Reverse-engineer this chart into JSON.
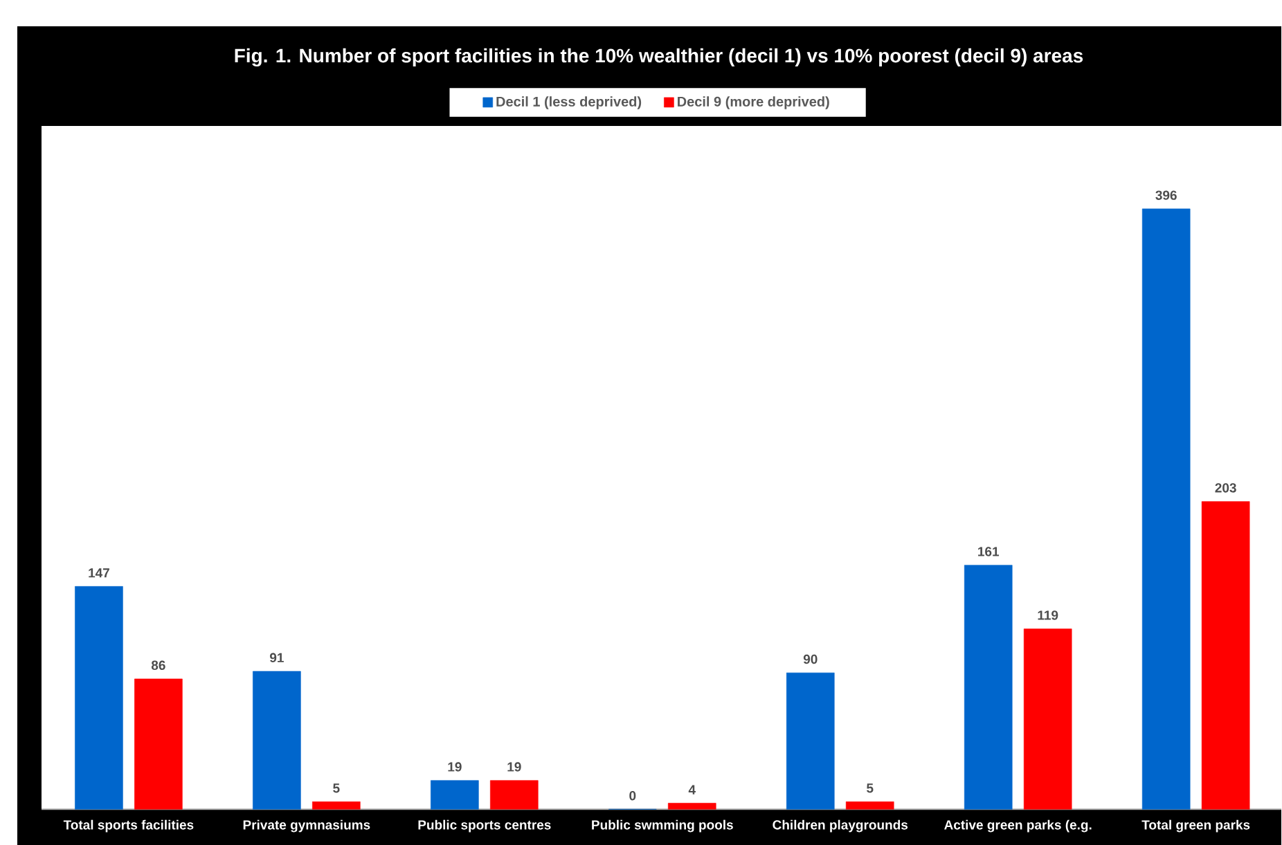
{
  "chart_data": {
    "type": "bar",
    "title": "Fig. 1. Number of sport facilities in the 10% wealthier (decil 1) vs 10% poorest (decil 9) areas",
    "categories": [
      "Total sports facilities",
      "Private gymnasiums",
      "Public sports centres",
      "Public swmming pools",
      "Children playgrounds",
      "Active green parks (e.g.",
      "Total green parks"
    ],
    "series": [
      {
        "name": "Decil 1 (less deprived)",
        "color": "#0066cc",
        "values": [
          147,
          91,
          19,
          0,
          90,
          161,
          396
        ]
      },
      {
        "name": "Decil 9 (more deprived)",
        "color": "#ff0000",
        "values": [
          86,
          5,
          19,
          4,
          5,
          119,
          203
        ]
      }
    ],
    "data_labels": true,
    "legend": "top"
  }
}
